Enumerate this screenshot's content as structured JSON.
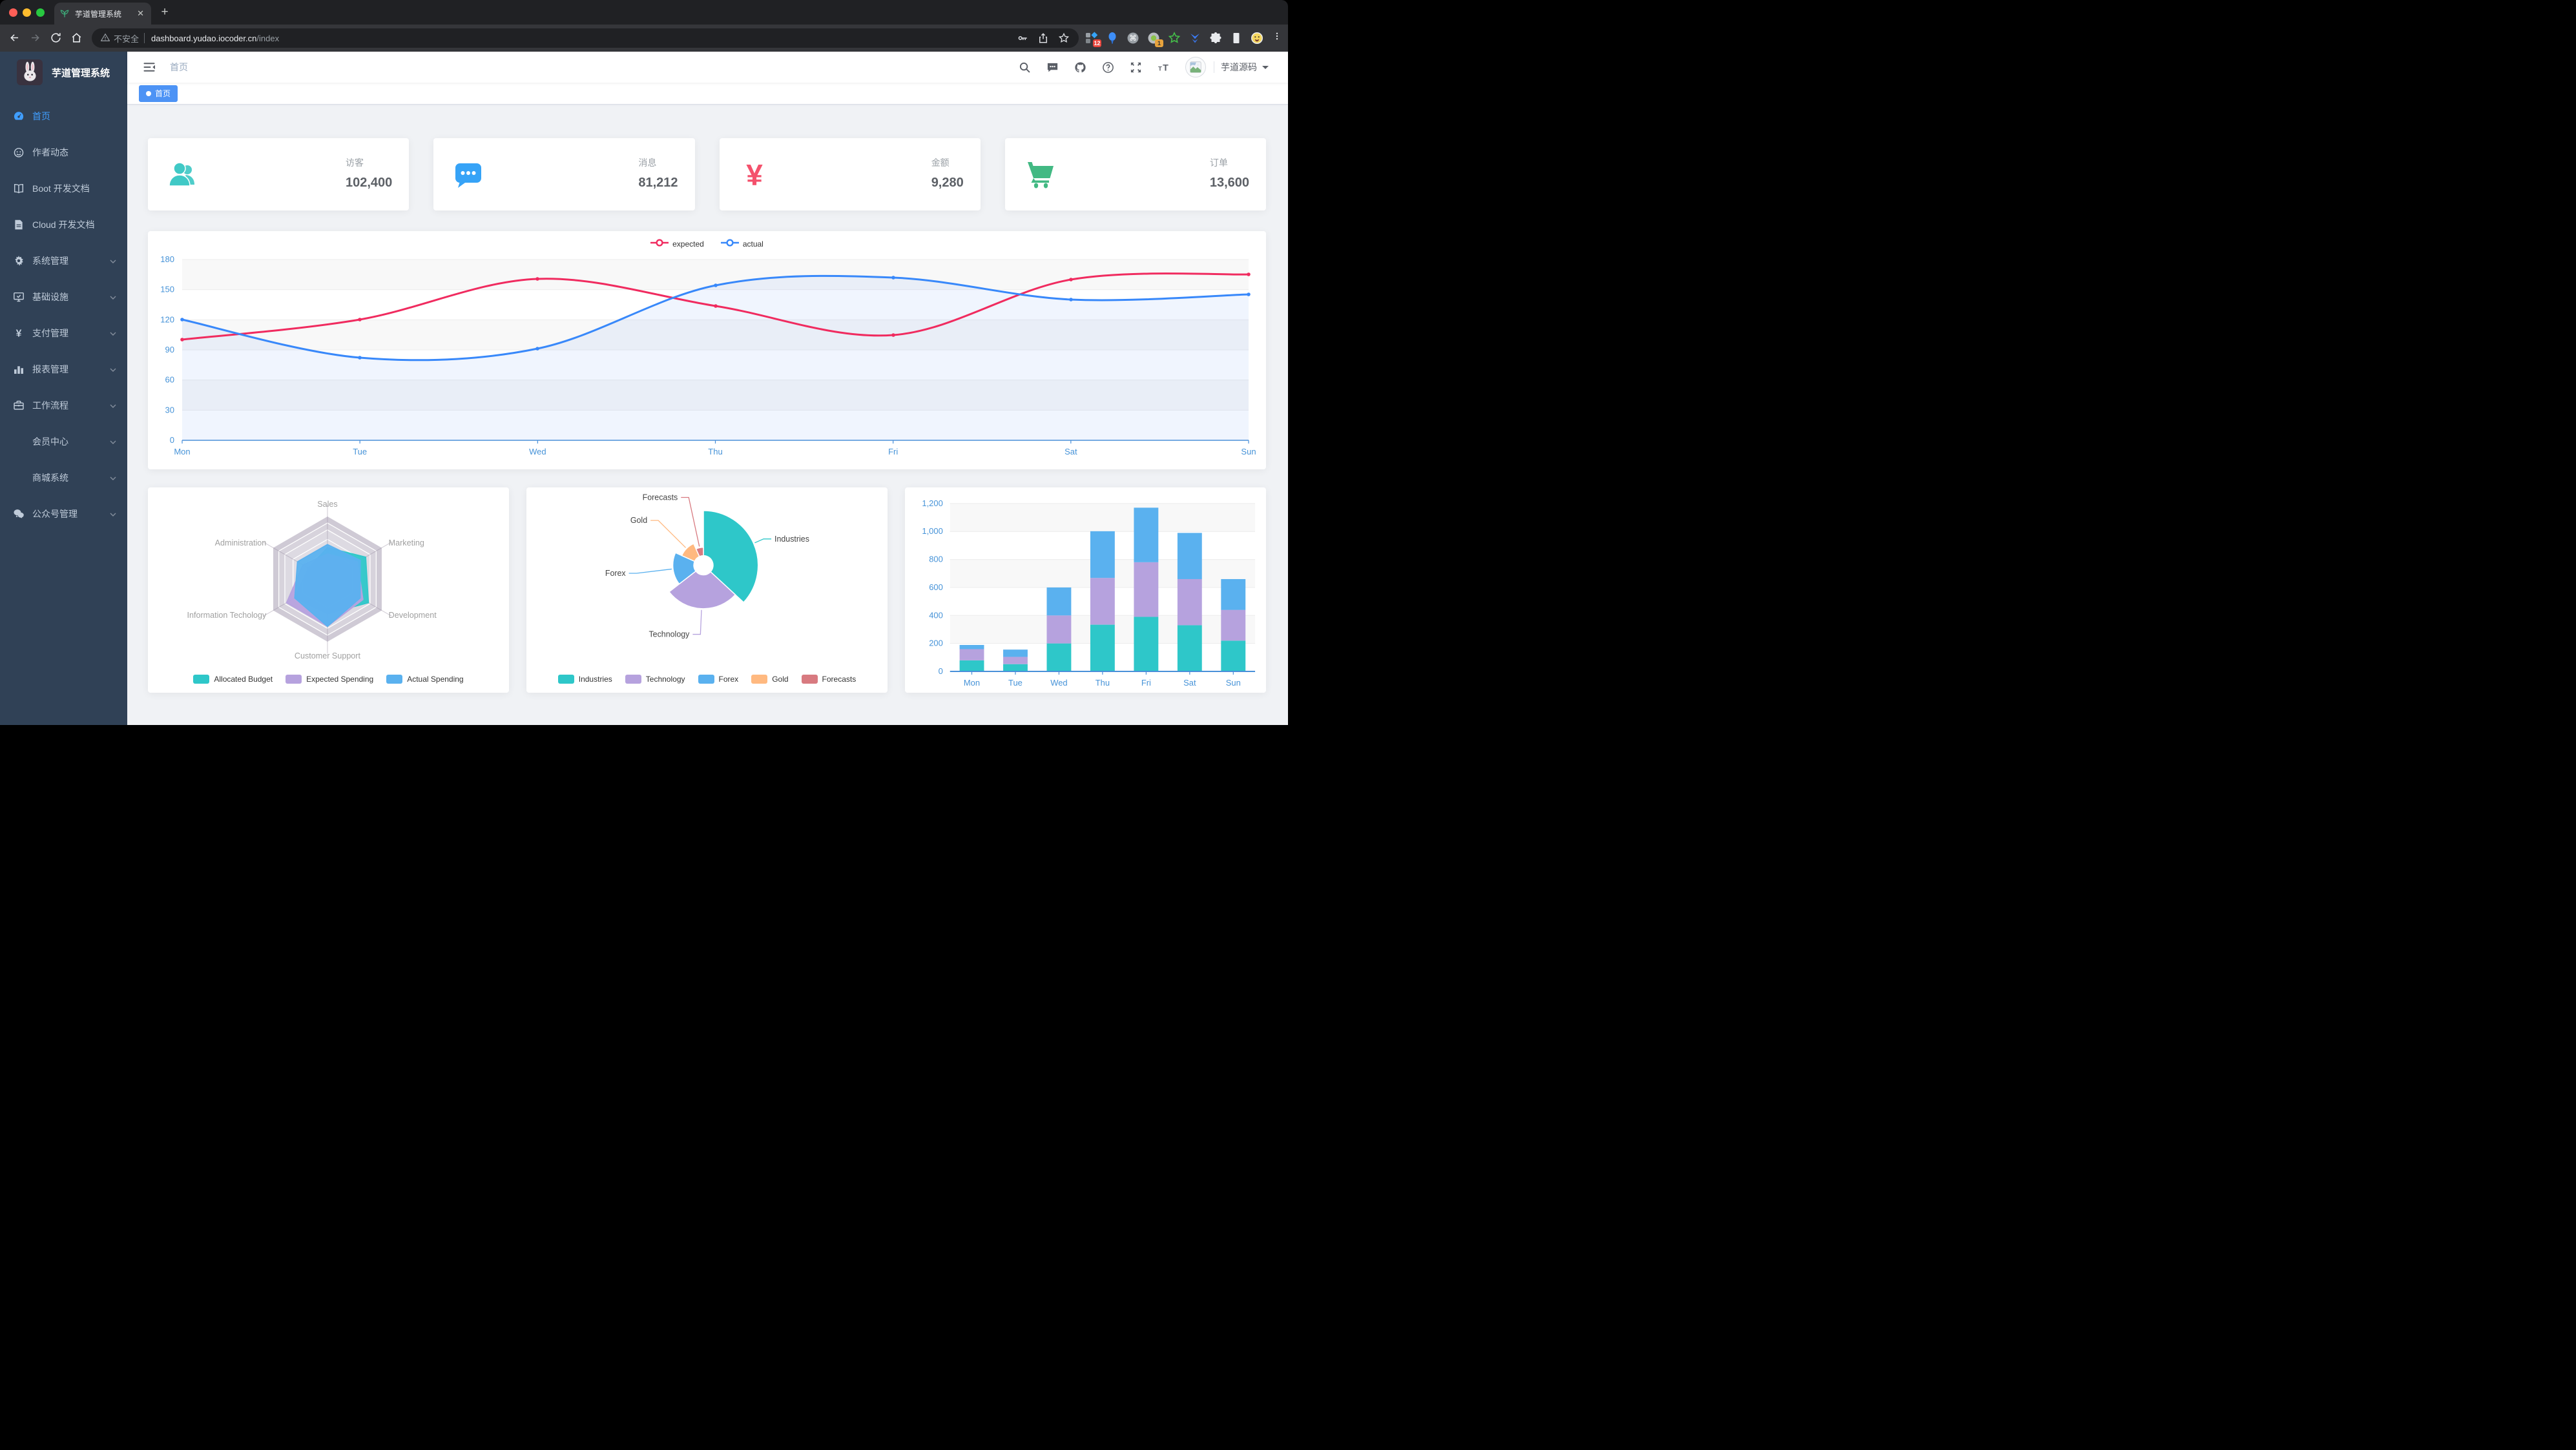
{
  "window": {
    "tab_title": "芋道管理系统",
    "close_tab_label": "✕",
    "new_tab_label": "+",
    "url_security": "不安全",
    "url_host": "dashboard.yudao.iocoder.cn",
    "url_path": "/index",
    "ext_badge_a": "12",
    "ext_badge_b": "1"
  },
  "sidebar": {
    "logo_title": "芋道管理系统",
    "items": [
      {
        "label": "首页",
        "icon": "dashboard",
        "active": true,
        "expandable": false
      },
      {
        "label": "作者动态",
        "icon": "face",
        "active": false,
        "expandable": false
      },
      {
        "label": "Boot 开发文档",
        "icon": "book",
        "active": false,
        "expandable": false
      },
      {
        "label": "Cloud 开发文档",
        "icon": "document",
        "active": false,
        "expandable": false
      },
      {
        "label": "系统管理",
        "icon": "gear",
        "active": false,
        "expandable": true
      },
      {
        "label": "基础设施",
        "icon": "monitor",
        "active": false,
        "expandable": true
      },
      {
        "label": "支付管理",
        "icon": "yen",
        "active": false,
        "expandable": true
      },
      {
        "label": "报表管理",
        "icon": "bar-chart",
        "active": false,
        "expandable": true
      },
      {
        "label": "工作流程",
        "icon": "briefcase",
        "active": false,
        "expandable": true
      },
      {
        "label": "会员中心",
        "icon": "none",
        "active": false,
        "expandable": true
      },
      {
        "label": "商城系统",
        "icon": "none",
        "active": false,
        "expandable": true
      },
      {
        "label": "公众号管理",
        "icon": "wechat",
        "active": false,
        "expandable": true
      }
    ]
  },
  "navbar": {
    "breadcrumb": "首页",
    "username": "芋道源码"
  },
  "tags_view": {
    "tags": [
      {
        "label": "首页",
        "active": true
      }
    ]
  },
  "stat_cards": [
    {
      "label": "访客",
      "value": "102,400",
      "icon": "people-group",
      "color": "#40c9c6"
    },
    {
      "label": "消息",
      "value": "81,212",
      "icon": "message",
      "color": "#36a3f7"
    },
    {
      "label": "金额",
      "value": "9,280",
      "icon": "money",
      "color": "#f4516c"
    },
    {
      "label": "订单",
      "value": "13,600",
      "icon": "cart",
      "color": "#42b983"
    }
  ],
  "chart_data": [
    {
      "type": "line",
      "x": [
        "Mon",
        "Tue",
        "Wed",
        "Thu",
        "Fri",
        "Sat",
        "Sun"
      ],
      "series": [
        {
          "name": "expected",
          "color": "#F02B5F",
          "values": [
            100,
            120,
            161,
            134,
            105,
            160,
            165
          ]
        },
        {
          "name": "actual",
          "color": "#3888fa",
          "values": [
            120,
            82,
            91,
            154,
            162,
            140,
            145
          ]
        }
      ],
      "ylim": [
        0,
        180
      ],
      "yticks": [
        0,
        30,
        60,
        90,
        120,
        150,
        180
      ],
      "legend_position": "top",
      "grid": true
    },
    {
      "type": "radar",
      "indicators": [
        {
          "name": "Sales",
          "max": 10000
        },
        {
          "name": "Administration",
          "max": 20000
        },
        {
          "name": "Information Techology",
          "max": 20000
        },
        {
          "name": "Customer Support",
          "max": 20000
        },
        {
          "name": "Development",
          "max": 20000
        },
        {
          "name": "Marketing",
          "max": 20000
        }
      ],
      "series": [
        {
          "name": "Allocated Budget",
          "color": "#2ec7c9",
          "values": [
            5000,
            7000,
            12000,
            11000,
            15000,
            14000
          ]
        },
        {
          "name": "Expected Spending",
          "color": "#b6a2de",
          "values": [
            4000,
            9000,
            15000,
            15000,
            13000,
            11000
          ]
        },
        {
          "name": "Actual Spending",
          "color": "#5ab1ef",
          "values": [
            5500,
            11000,
            12000,
            15000,
            12000,
            12000
          ]
        }
      ],
      "legend_position": "bottom"
    },
    {
      "type": "pie",
      "rose": true,
      "slices": [
        {
          "name": "Industries",
          "value": 320,
          "color": "#2ec7c9"
        },
        {
          "name": "Technology",
          "value": 240,
          "color": "#b6a2de"
        },
        {
          "name": "Forex",
          "value": 149,
          "color": "#5ab1ef"
        },
        {
          "name": "Gold",
          "value": 100,
          "color": "#ffb980"
        },
        {
          "name": "Forecasts",
          "value": 59,
          "color": "#d87a80"
        }
      ],
      "legend_position": "bottom"
    },
    {
      "type": "bar",
      "stacked": true,
      "categories": [
        "Mon",
        "Tue",
        "Wed",
        "Thu",
        "Fri",
        "Sat",
        "Sun"
      ],
      "series": [
        {
          "color": "#2ec7c9",
          "values": [
            79,
            52,
            200,
            334,
            390,
            330,
            220
          ]
        },
        {
          "color": "#b6a2de",
          "values": [
            80,
            52,
            200,
            334,
            390,
            330,
            220
          ]
        },
        {
          "color": "#5ab1ef",
          "values": [
            30,
            52,
            200,
            334,
            390,
            330,
            220
          ]
        }
      ],
      "ylim": [
        0,
        1200
      ],
      "yticks": [
        0,
        200,
        400,
        600,
        800,
        1000,
        1200
      ],
      "legend_position": "none"
    }
  ]
}
